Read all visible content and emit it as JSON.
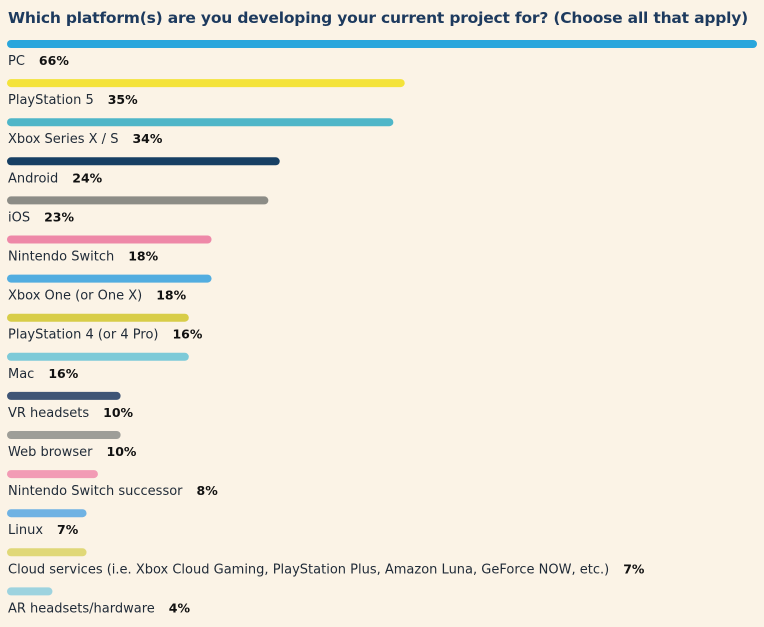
{
  "chart_data": {
    "type": "bar",
    "orientation": "horizontal",
    "title": "Which platform(s) are you developing your current project for? (Choose all that apply)",
    "xlabel": "",
    "ylabel": "",
    "xlim": [
      0,
      66
    ],
    "grid": false,
    "categories": [
      "PC",
      "PlayStation 5",
      "Xbox Series X / S",
      "Android",
      "iOS",
      "Nintendo Switch",
      "Xbox One (or One X)",
      "PlayStation 4 (or 4 Pro)",
      "Mac",
      "VR headsets",
      "Web browser",
      "Nintendo Switch successor",
      "Linux",
      "Cloud services (i.e. Xbox Cloud Gaming, PlayStation Plus, Amazon Luna, GeForce NOW, etc.)",
      "AR headsets/hardware"
    ],
    "values": [
      66,
      35,
      34,
      24,
      23,
      18,
      18,
      16,
      16,
      10,
      10,
      8,
      7,
      7,
      4
    ],
    "value_labels": [
      "66%",
      "35%",
      "34%",
      "24%",
      "23%",
      "18%",
      "18%",
      "16%",
      "16%",
      "10%",
      "10%",
      "8%",
      "7%",
      "7%",
      "4%"
    ],
    "colors": [
      "#29a6dc",
      "#f4e33a",
      "#4fb6c8",
      "#173f63",
      "#8c8c86",
      "#ee88a8",
      "#52ade0",
      "#d8cd48",
      "#7dcad8",
      "#3f5576",
      "#9e9e98",
      "#f29bb5",
      "#6fb2e3",
      "#e0d878",
      "#9dd3df"
    ]
  }
}
